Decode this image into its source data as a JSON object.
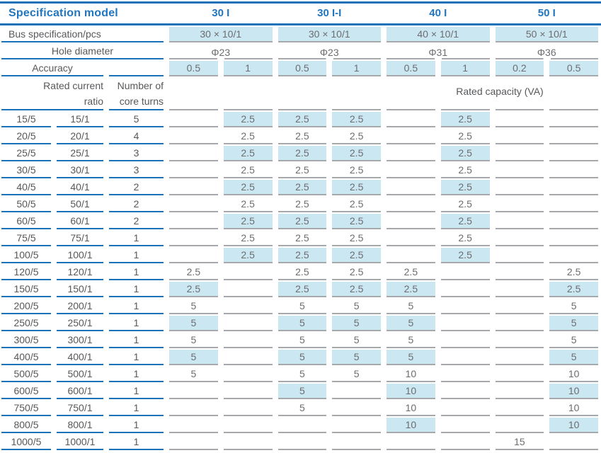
{
  "colors": {
    "accent_blue": "#1b72b8",
    "header_text_blue": "#2176bf",
    "highlight_cell": "#cbe7f2",
    "gray_rule": "#a6a8ab",
    "label_text": "#57585b",
    "value_text": "#6c6d70"
  },
  "header": {
    "title": "Specification model",
    "models": [
      "30 I",
      "30 I-I",
      "40 I",
      "50 I"
    ],
    "bus_label": "Bus specification/pcs",
    "bus_values": [
      "30 × 10/1",
      "30 × 10/1",
      "40 × 10/1",
      "50 × 10/1"
    ],
    "hole_label": "Hole diameter",
    "hole_values": [
      "Φ23",
      "Φ23",
      "Φ31",
      "Φ36"
    ],
    "accuracy_label": "Accuracy",
    "accuracy_values": [
      "0.5",
      "1",
      "0.5",
      "1",
      "0.5",
      "1",
      "0.2",
      "0.5"
    ],
    "ratio_header": [
      "Rated current",
      "ratio"
    ],
    "turns_header": [
      "Number of",
      "core turns"
    ],
    "capacity_header": "Rated capacity (VA)"
  },
  "rows": [
    {
      "ratio5": "15/5",
      "ratio1": "15/1",
      "turns": "5",
      "hl": true,
      "values": [
        "",
        "2.5",
        "2.5",
        "2.5",
        "",
        "2.5",
        "",
        ""
      ]
    },
    {
      "ratio5": "20/5",
      "ratio1": "20/1",
      "turns": "4",
      "hl": false,
      "values": [
        "",
        "2.5",
        "2.5",
        "2.5",
        "",
        "2.5",
        "",
        ""
      ]
    },
    {
      "ratio5": "25/5",
      "ratio1": "25/1",
      "turns": "3",
      "hl": true,
      "values": [
        "",
        "2.5",
        "2.5",
        "2.5",
        "",
        "2.5",
        "",
        ""
      ]
    },
    {
      "ratio5": "30/5",
      "ratio1": "30/1",
      "turns": "3",
      "hl": false,
      "values": [
        "",
        "2.5",
        "2.5",
        "2.5",
        "",
        "2.5",
        "",
        ""
      ]
    },
    {
      "ratio5": "40/5",
      "ratio1": "40/1",
      "turns": "2",
      "hl": true,
      "values": [
        "",
        "2.5",
        "2.5",
        "2.5",
        "",
        "2.5",
        "",
        ""
      ]
    },
    {
      "ratio5": "50/5",
      "ratio1": "50/1",
      "turns": "2",
      "hl": false,
      "values": [
        "",
        "2.5",
        "2.5",
        "2.5",
        "",
        "2.5",
        "",
        ""
      ]
    },
    {
      "ratio5": "60/5",
      "ratio1": "60/1",
      "turns": "2",
      "hl": true,
      "values": [
        "",
        "2.5",
        "2.5",
        "2.5",
        "",
        "2.5",
        "",
        ""
      ]
    },
    {
      "ratio5": "75/5",
      "ratio1": "75/1",
      "turns": "1",
      "hl": false,
      "values": [
        "",
        "2.5",
        "2.5",
        "2.5",
        "",
        "2.5",
        "",
        ""
      ]
    },
    {
      "ratio5": "100/5",
      "ratio1": "100/1",
      "turns": "1",
      "hl": true,
      "values": [
        "",
        "2.5",
        "2.5",
        "2.5",
        "",
        "2.5",
        "",
        ""
      ]
    },
    {
      "ratio5": "120/5",
      "ratio1": "120/1",
      "turns": "1",
      "hl": false,
      "values": [
        "2.5",
        "",
        "2.5",
        "2.5",
        "2.5",
        "",
        "",
        "2.5"
      ]
    },
    {
      "ratio5": "150/5",
      "ratio1": "150/1",
      "turns": "1",
      "hl": true,
      "values": [
        "2.5",
        "",
        "2.5",
        "2.5",
        "2.5",
        "",
        "",
        "2.5"
      ]
    },
    {
      "ratio5": "200/5",
      "ratio1": "200/1",
      "turns": "1",
      "hl": false,
      "values": [
        "5",
        "",
        "5",
        "5",
        "5",
        "",
        "",
        "5"
      ]
    },
    {
      "ratio5": "250/5",
      "ratio1": "250/1",
      "turns": "1",
      "hl": true,
      "values": [
        "5",
        "",
        "5",
        "5",
        "5",
        "",
        "",
        "5"
      ]
    },
    {
      "ratio5": "300/5",
      "ratio1": "300/1",
      "turns": "1",
      "hl": false,
      "values": [
        "5",
        "",
        "5",
        "5",
        "5",
        "",
        "",
        "5"
      ]
    },
    {
      "ratio5": "400/5",
      "ratio1": "400/1",
      "turns": "1",
      "hl": true,
      "values": [
        "5",
        "",
        "5",
        "5",
        "5",
        "",
        "",
        "5"
      ]
    },
    {
      "ratio5": "500/5",
      "ratio1": "500/1",
      "turns": "1",
      "hl": false,
      "values": [
        "5",
        "",
        "5",
        "5",
        "10",
        "",
        "",
        "10"
      ]
    },
    {
      "ratio5": "600/5",
      "ratio1": "600/1",
      "turns": "1",
      "hl": true,
      "values": [
        "",
        "",
        "5",
        "",
        "10",
        "",
        "",
        "10"
      ]
    },
    {
      "ratio5": "750/5",
      "ratio1": "750/1",
      "turns": "1",
      "hl": false,
      "values": [
        "",
        "",
        "5",
        "",
        "10",
        "",
        "",
        "10"
      ]
    },
    {
      "ratio5": "800/5",
      "ratio1": "800/1",
      "turns": "1",
      "hl": true,
      "values": [
        "",
        "",
        "",
        "",
        "10",
        "",
        "",
        "10"
      ]
    },
    {
      "ratio5": "1000/5",
      "ratio1": "1000/1",
      "turns": "1",
      "hl": false,
      "values": [
        "",
        "",
        "",
        "",
        "",
        "",
        "15",
        ""
      ]
    }
  ]
}
